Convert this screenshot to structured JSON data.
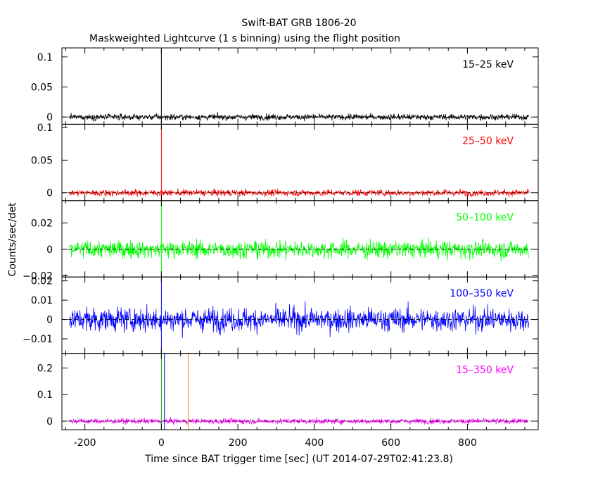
{
  "title": "Swift-BAT GRB 1806-20",
  "subtitle": "Maskweighted Lightcurve (1 s binning) using the flight position",
  "xlabel": "Time since BAT trigger time [sec] (UT 2014-07-29T02:41:23.8)",
  "ylabel": "Counts/sec/det",
  "colors": {
    "axis": "#000000",
    "zero_line": "#000000",
    "trigger_green": "#00aa00",
    "trigger_blue": "#0000cc",
    "t90_orange": "#ff8000"
  },
  "chart_data": {
    "type": "line",
    "x_range": [
      -260,
      985
    ],
    "xticks": [
      -200,
      0,
      200,
      400,
      600,
      800
    ],
    "xtick_labels": [
      "-200",
      "0",
      "200",
      "400",
      "600",
      "800"
    ],
    "data_x_range": [
      -240,
      960
    ],
    "bin_seconds": 1,
    "panels": [
      {
        "name": "15-25 keV",
        "label": "15–25 keV",
        "color": "#000000",
        "ylim": [
          -0.012,
          0.115
        ],
        "yticks": [
          0,
          0.05,
          0.1
        ],
        "ytick_labels": [
          "0",
          "0.05",
          "0.1"
        ],
        "noise_sigma": 0.0045,
        "markers": [
          {
            "x": 0,
            "color": "#000000"
          }
        ]
      },
      {
        "name": "25-50 keV",
        "label": "25–50 keV",
        "color": "#ff0000",
        "ylim": [
          -0.012,
          0.105
        ],
        "yticks": [
          0,
          0.05,
          0.1
        ],
        "ytick_labels": [
          "0",
          "0.05",
          "0.1"
        ],
        "noise_sigma": 0.0045,
        "markers": [
          {
            "x": 0,
            "color": "#ff0000"
          }
        ]
      },
      {
        "name": "50-100 keV",
        "label": "50–100 keV",
        "color": "#00ff00",
        "ylim": [
          -0.021,
          0.037
        ],
        "yticks": [
          -0.02,
          0,
          0.02
        ],
        "ytick_labels": [
          "−0.02",
          "0",
          "0.02"
        ],
        "noise_sigma": 0.006,
        "markers": [
          {
            "x": 0,
            "color": "#00ff00"
          }
        ]
      },
      {
        "name": "100-350 keV",
        "label": "100–350 keV",
        "color": "#0000ff",
        "ylim": [
          -0.0175,
          0.022
        ],
        "yticks": [
          -0.01,
          0,
          0.01,
          0.02
        ],
        "ytick_labels": [
          "−0.01",
          "0",
          "0.01",
          "0.02"
        ],
        "noise_sigma": 0.0055,
        "markers": [
          {
            "x": 0,
            "color": "#0000ff"
          }
        ]
      },
      {
        "name": "15-350 keV",
        "label": "15–350 keV",
        "color": "#ff00ff",
        "ylim": [
          -0.032,
          0.255
        ],
        "yticks": [
          0,
          0.1,
          0.2
        ],
        "ytick_labels": [
          "0",
          "0.1",
          "0.2"
        ],
        "noise_sigma": 0.009,
        "markers": [
          {
            "x": 0,
            "color": "#00aa00"
          },
          {
            "x": 8,
            "color": "#0000cc"
          },
          {
            "x": 70,
            "color": "#ff8000"
          }
        ]
      }
    ]
  }
}
